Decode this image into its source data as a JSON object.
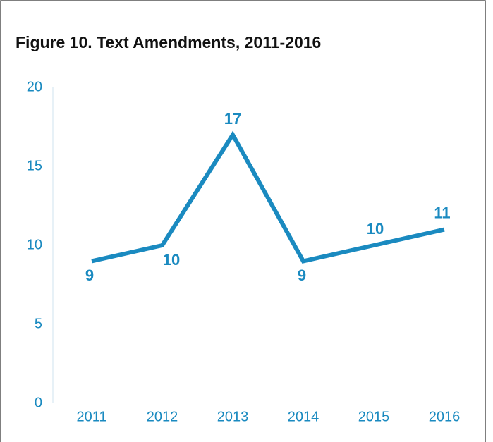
{
  "chart_data": {
    "type": "line",
    "title": "Figure 10. Text Amendments, 2011-2016",
    "categories": [
      "2011",
      "2012",
      "2013",
      "2014",
      "2015",
      "2016"
    ],
    "values": [
      9,
      10,
      17,
      9,
      10,
      11
    ],
    "color": "#1a8ac0",
    "ylim": [
      0,
      20
    ],
    "yticks": [
      0,
      5,
      10,
      15,
      20
    ],
    "grid": false
  }
}
